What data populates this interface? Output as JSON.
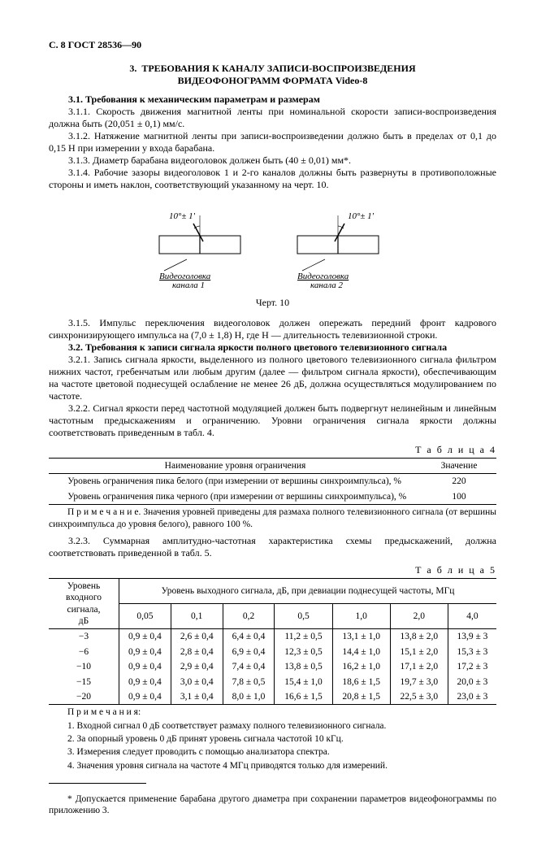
{
  "header": "С. 8 ГОСТ 28536—90",
  "section_num": "3.",
  "section_title_l1": "ТРЕБОВАНИЯ К КАНАЛУ ЗАПИСИ-ВОСПРОИЗВЕДЕНИЯ",
  "section_title_l2": "ВИДЕОФОНОГРАММ ФОРМАТА Video-8",
  "p31_label": "3.1. Требования к механическим параметрам и размерам",
  "p311": "3.1.1. Скорость движения магнитной ленты при номинальной скорости записи-воспроизведения должна быть (20,051 ± 0,1) мм/с.",
  "p312": "3.1.2. Натяжение магнитной ленты при записи-воспроизведении должно быть в пределах от 0,1 до 0,15 Н при измерении у входа барабана.",
  "p313": "3.1.3. Диаметр барабана видеоголовок должен быть (40 ± 0,01) мм*.",
  "p314": "3.1.4. Рабочие зазоры видеоголовок 1 и 2-го каналов должны быть развернуты в противоположные стороны и иметь наклон, соответствующий указанному на черт. 10.",
  "fig": {
    "angle_left": "10°± 1'",
    "angle_right": "10°± 1'",
    "label_left_l1": "Видеоголовка",
    "label_left_l2": "канала 1",
    "label_right_l1": "Видеоголовка",
    "label_right_l2": "канала 2",
    "caption": "Черт. 10"
  },
  "p315": "3.1.5. Импульс переключения видеоголовок должен опережать передний фронт кадрового синхронизирующего импульса на (7,0 ± 1,8) H, где H — длительность телевизионной строки.",
  "p32_label": "3.2. Требования к записи сигнала яркости полного цветового телевизионного сигнала",
  "p321": "3.2.1. Запись сигнала яркости, выделенного из полного цветового телевизионного сигнала фильтром нижних частот, гребенчатым или любым другим (далее — фильтром сигнала яркости), обеспечивающим на частоте цветовой поднесущей ослабление не менее 26 дБ, должна осуществляться модулированием по частоте.",
  "p322": "3.2.2. Сигнал яркости перед частотной модуляцией должен быть подвергнут нелинейным и линейным частотным предыскажениям и ограничению. Уровни ограничения сигнала яркости должны соответствовать приведенным в табл. 4.",
  "table4": {
    "label": "Т а б л и ц а  4",
    "col1": "Наименование уровня ограничения",
    "col2": "Значение",
    "rows": [
      {
        "name": "Уровень ограничения пика белого (при измерении от вершины синхроимпульса), %",
        "val": "220"
      },
      {
        "name": "Уровень ограничения пика черного (при измерении от вершины синхроимпульса), %",
        "val": "100"
      }
    ],
    "note": "П р и м е ч а н и е.  Значения уровней приведены для размаха полного телевизионного сигнала (от вершины синхроимпульса до уровня белого), равного 100 %."
  },
  "p323": "3.2.3. Суммарная амплитудно-частотная характеристика схемы предыскажений, должна соответствовать приведенной в табл. 5.",
  "table5": {
    "label": "Т а б л и ц а  5",
    "col_in_l1": "Уровень",
    "col_in_l2": "входного сигнала,",
    "col_in_l3": "дБ",
    "col_out": "Уровень выходного сигнала, дБ, при девиации поднесущей частоты, МГц",
    "freqs": [
      "0,05",
      "0,1",
      "0,2",
      "0,5",
      "1,0",
      "2,0",
      "4,0"
    ],
    "rows": [
      {
        "in": "−3",
        "v": [
          "0,9 ± 0,4",
          "2,6 ± 0,4",
          "6,4 ± 0,4",
          "11,2 ± 0,5",
          "13,1 ± 1,0",
          "13,8 ± 2,0",
          "13,9 ± 3"
        ]
      },
      {
        "in": "−6",
        "v": [
          "0,9 ± 0,4",
          "2,8 ± 0,4",
          "6,9 ± 0,4",
          "12,3 ± 0,5",
          "14,4 ± 1,0",
          "15,1 ± 2,0",
          "15,3 ± 3"
        ]
      },
      {
        "in": "−10",
        "v": [
          "0,9 ± 0,4",
          "2,9 ± 0,4",
          "7,4 ± 0,4",
          "13,8 ± 0,5",
          "16,2 ± 1,0",
          "17,1 ± 2,0",
          "17,2 ± 3"
        ]
      },
      {
        "in": "−15",
        "v": [
          "0,9 ± 0,4",
          "3,0 ± 0,4",
          "7,8 ± 0,5",
          "15,4 ± 1,0",
          "18,6 ± 1,5",
          "19,7 ± 3,0",
          "20,0 ± 3"
        ]
      },
      {
        "in": "−20",
        "v": [
          "0,9 ± 0,4",
          "3,1 ± 0,4",
          "8,0 ± 1,0",
          "16,6 ± 1,5",
          "20,8 ± 1,5",
          "22,5 ± 3,0",
          "23,0 ± 3"
        ]
      }
    ],
    "notes_label": "П р и м е ч а н и я:",
    "notes": [
      "1. Входной сигнал 0 дБ соответствует размаху полного телевизионного сигнала.",
      "2. За опорный уровень 0 дБ принят уровень сигнала частотой 10 кГц.",
      "3. Измерения следует проводить с помощью анализатора спектра.",
      "4. Значения уровня сигнала на частоте 4 МГц приводятся только для измерений."
    ]
  },
  "footnote": "* Допускается применение барабана другого диаметра при сохранении параметров видеофонограммы по приложению 3."
}
